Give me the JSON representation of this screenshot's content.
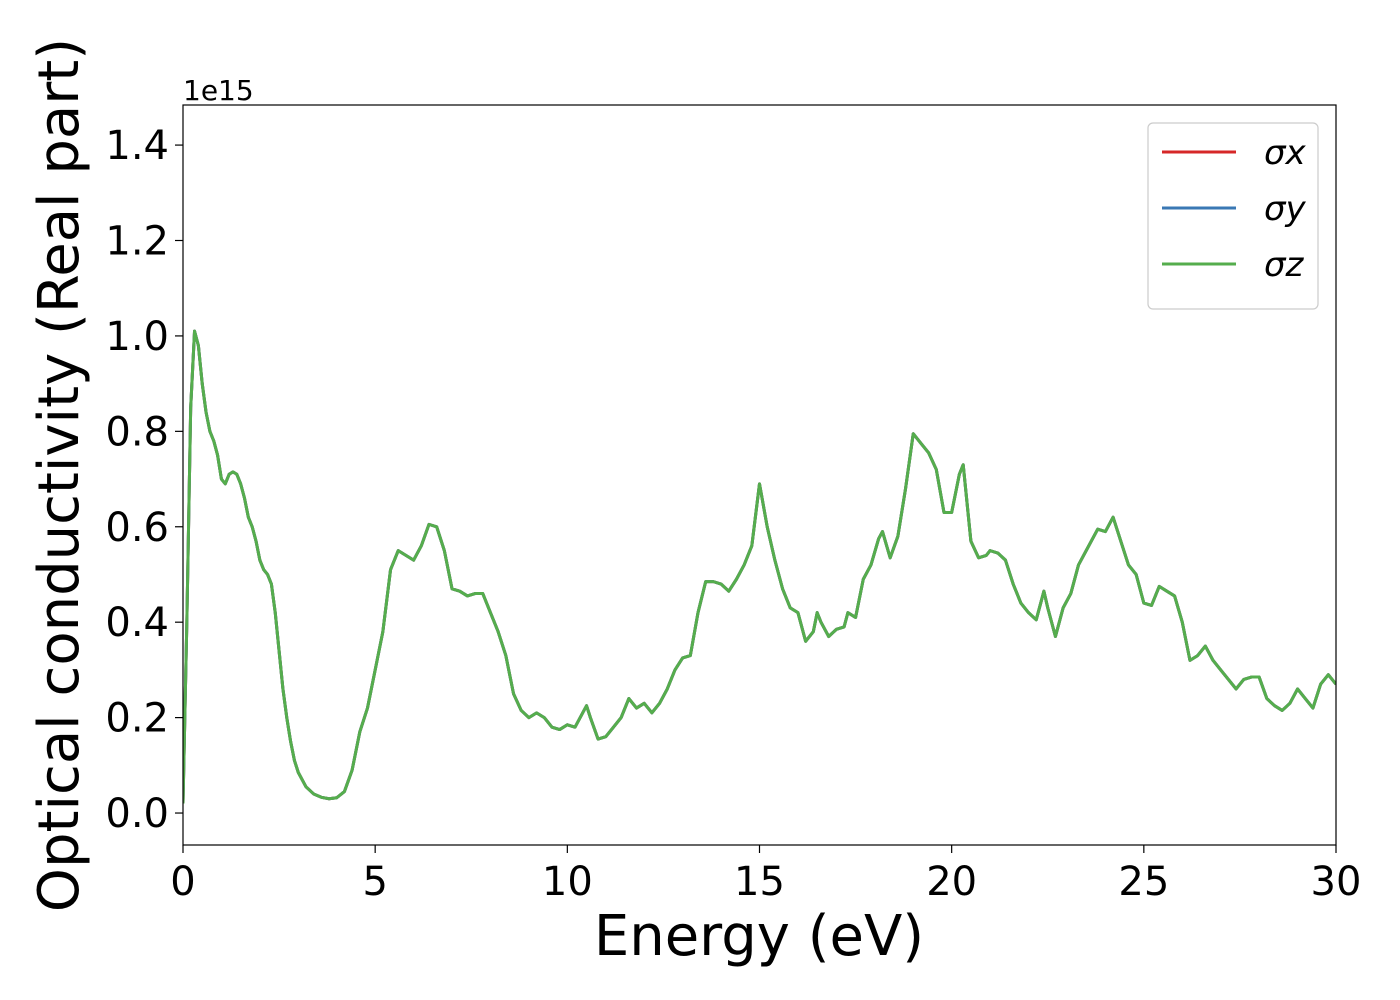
{
  "chart_data": {
    "type": "line",
    "xlabel": "Energy (eV)",
    "ylabel": "Optical conductivity (Real part)",
    "y_offset_label": "1e15",
    "xlim": [
      0,
      30
    ],
    "xticks": [
      0,
      5,
      10,
      15,
      20,
      25,
      30
    ],
    "ylim": [
      -0.067,
      1.484
    ],
    "yticks": [
      {
        "value": 0,
        "label": "0.0"
      },
      0.2,
      0.4,
      0.6,
      0.8,
      {
        "value": 1,
        "label": "1.0"
      },
      1.2,
      1.4
    ],
    "legend": "upper right",
    "grid": false,
    "x": [
      0,
      0.1,
      0.2,
      0.3,
      0.4,
      0.5,
      0.6,
      0.7,
      0.8,
      0.9,
      1.0,
      1.1,
      1.2,
      1.3,
      1.4,
      1.5,
      1.6,
      1.7,
      1.8,
      1.9,
      2.0,
      2.1,
      2.2,
      2.3,
      2.4,
      2.5,
      2.6,
      2.7,
      2.8,
      2.9,
      3.0,
      3.2,
      3.4,
      3.6,
      3.8,
      4.0,
      4.2,
      4.4,
      4.6,
      4.8,
      5.0,
      5.2,
      5.4,
      5.6,
      5.8,
      6.0,
      6.2,
      6.4,
      6.6,
      6.8,
      7.0,
      7.2,
      7.4,
      7.6,
      7.8,
      8.0,
      8.2,
      8.4,
      8.6,
      8.8,
      9.0,
      9.2,
      9.4,
      9.6,
      9.8,
      10.0,
      10.2,
      10.4,
      10.5,
      10.6,
      10.8,
      11.0,
      11.2,
      11.4,
      11.6,
      11.8,
      12.0,
      12.2,
      12.4,
      12.6,
      12.8,
      13.0,
      13.2,
      13.4,
      13.6,
      13.8,
      14.0,
      14.2,
      14.4,
      14.6,
      14.8,
      15.0,
      15.2,
      15.4,
      15.6,
      15.8,
      16.0,
      16.2,
      16.4,
      16.5,
      16.6,
      16.8,
      17.0,
      17.2,
      17.3,
      17.5,
      17.7,
      17.9,
      18.1,
      18.2,
      18.4,
      18.6,
      18.8,
      19.0,
      19.2,
      19.4,
      19.6,
      19.8,
      20.0,
      20.2,
      20.3,
      20.5,
      20.7,
      20.9,
      21.0,
      21.2,
      21.4,
      21.6,
      21.8,
      22.0,
      22.2,
      22.4,
      22.5,
      22.7,
      22.9,
      23.1,
      23.3,
      23.5,
      23.8,
      24.0,
      24.2,
      24.4,
      24.6,
      24.8,
      25.0,
      25.2,
      25.4,
      25.6,
      25.8,
      26.0,
      26.2,
      26.4,
      26.6,
      26.8,
      27.0,
      27.2,
      27.4,
      27.6,
      27.8,
      28.0,
      28.2,
      28.4,
      28.6,
      28.8,
      29.0,
      29.2,
      29.4,
      29.6,
      29.8,
      30.0
    ],
    "series": [
      {
        "name": "σx",
        "color": "#d62728",
        "values": [
          0.02,
          0.4,
          0.85,
          1.01,
          0.98,
          0.9,
          0.84,
          0.8,
          0.78,
          0.75,
          0.7,
          0.69,
          0.71,
          0.715,
          0.71,
          0.69,
          0.66,
          0.62,
          0.6,
          0.57,
          0.53,
          0.51,
          0.5,
          0.48,
          0.42,
          0.34,
          0.26,
          0.2,
          0.15,
          0.11,
          0.085,
          0.055,
          0.04,
          0.033,
          0.03,
          0.032,
          0.045,
          0.09,
          0.17,
          0.22,
          0.3,
          0.38,
          0.51,
          0.55,
          0.54,
          0.53,
          0.56,
          0.605,
          0.6,
          0.55,
          0.47,
          0.465,
          0.455,
          0.46,
          0.46,
          0.42,
          0.38,
          0.33,
          0.25,
          0.215,
          0.2,
          0.21,
          0.2,
          0.18,
          0.175,
          0.185,
          0.18,
          0.21,
          0.225,
          0.2,
          0.155,
          0.16,
          0.18,
          0.2,
          0.24,
          0.22,
          0.23,
          0.21,
          0.23,
          0.26,
          0.3,
          0.325,
          0.33,
          0.42,
          0.485,
          0.485,
          0.48,
          0.465,
          0.49,
          0.52,
          0.56,
          0.69,
          0.6,
          0.53,
          0.47,
          0.43,
          0.42,
          0.36,
          0.38,
          0.42,
          0.4,
          0.37,
          0.385,
          0.39,
          0.42,
          0.41,
          0.49,
          0.52,
          0.575,
          0.59,
          0.535,
          0.58,
          0.68,
          0.795,
          0.775,
          0.755,
          0.72,
          0.63,
          0.63,
          0.71,
          0.73,
          0.57,
          0.535,
          0.54,
          0.55,
          0.545,
          0.53,
          0.48,
          0.44,
          0.42,
          0.405,
          0.465,
          0.43,
          0.37,
          0.43,
          0.46,
          0.52,
          0.55,
          0.595,
          0.59,
          0.62,
          0.57,
          0.52,
          0.5,
          0.44,
          0.435,
          0.475,
          0.465,
          0.455,
          0.4,
          0.32,
          0.33,
          0.35,
          0.32,
          0.3,
          0.28,
          0.26,
          0.28,
          0.285,
          0.285,
          0.24,
          0.225,
          0.215,
          0.23,
          0.26,
          0.24,
          0.22,
          0.27,
          0.29,
          0.27
        ]
      },
      {
        "name": "σy",
        "color": "#3a78b4",
        "values": [
          0.02,
          0.4,
          0.85,
          1.01,
          0.98,
          0.9,
          0.84,
          0.8,
          0.78,
          0.75,
          0.7,
          0.69,
          0.71,
          0.715,
          0.71,
          0.69,
          0.66,
          0.62,
          0.6,
          0.57,
          0.53,
          0.51,
          0.5,
          0.48,
          0.42,
          0.34,
          0.26,
          0.2,
          0.15,
          0.11,
          0.085,
          0.055,
          0.04,
          0.033,
          0.03,
          0.032,
          0.045,
          0.09,
          0.17,
          0.22,
          0.3,
          0.38,
          0.51,
          0.55,
          0.54,
          0.53,
          0.56,
          0.605,
          0.6,
          0.55,
          0.47,
          0.465,
          0.455,
          0.46,
          0.46,
          0.42,
          0.38,
          0.33,
          0.25,
          0.215,
          0.2,
          0.21,
          0.2,
          0.18,
          0.175,
          0.185,
          0.18,
          0.21,
          0.225,
          0.2,
          0.155,
          0.16,
          0.18,
          0.2,
          0.24,
          0.22,
          0.23,
          0.21,
          0.23,
          0.26,
          0.3,
          0.325,
          0.33,
          0.42,
          0.485,
          0.485,
          0.48,
          0.465,
          0.49,
          0.52,
          0.56,
          0.69,
          0.6,
          0.53,
          0.47,
          0.43,
          0.42,
          0.36,
          0.38,
          0.42,
          0.4,
          0.37,
          0.385,
          0.39,
          0.42,
          0.41,
          0.49,
          0.52,
          0.575,
          0.59,
          0.535,
          0.58,
          0.68,
          0.795,
          0.775,
          0.755,
          0.72,
          0.63,
          0.63,
          0.71,
          0.73,
          0.57,
          0.535,
          0.54,
          0.55,
          0.545,
          0.53,
          0.48,
          0.44,
          0.42,
          0.405,
          0.465,
          0.43,
          0.37,
          0.43,
          0.46,
          0.52,
          0.55,
          0.595,
          0.59,
          0.62,
          0.57,
          0.52,
          0.5,
          0.44,
          0.435,
          0.475,
          0.465,
          0.455,
          0.4,
          0.32,
          0.33,
          0.35,
          0.32,
          0.3,
          0.28,
          0.26,
          0.28,
          0.285,
          0.285,
          0.24,
          0.225,
          0.215,
          0.23,
          0.26,
          0.24,
          0.22,
          0.27,
          0.29,
          0.27
        ]
      },
      {
        "name": "σz",
        "color": "#55ad4d",
        "values": [
          0.02,
          0.4,
          0.85,
          1.01,
          0.98,
          0.9,
          0.84,
          0.8,
          0.78,
          0.75,
          0.7,
          0.69,
          0.71,
          0.715,
          0.71,
          0.69,
          0.66,
          0.62,
          0.6,
          0.57,
          0.53,
          0.51,
          0.5,
          0.48,
          0.42,
          0.34,
          0.26,
          0.2,
          0.15,
          0.11,
          0.085,
          0.055,
          0.04,
          0.033,
          0.03,
          0.032,
          0.045,
          0.09,
          0.17,
          0.22,
          0.3,
          0.38,
          0.51,
          0.55,
          0.54,
          0.53,
          0.56,
          0.605,
          0.6,
          0.55,
          0.47,
          0.465,
          0.455,
          0.46,
          0.46,
          0.42,
          0.38,
          0.33,
          0.25,
          0.215,
          0.2,
          0.21,
          0.2,
          0.18,
          0.175,
          0.185,
          0.18,
          0.21,
          0.225,
          0.2,
          0.155,
          0.16,
          0.18,
          0.2,
          0.24,
          0.22,
          0.23,
          0.21,
          0.23,
          0.26,
          0.3,
          0.325,
          0.33,
          0.42,
          0.485,
          0.485,
          0.48,
          0.465,
          0.49,
          0.52,
          0.56,
          0.69,
          0.6,
          0.53,
          0.47,
          0.43,
          0.42,
          0.36,
          0.38,
          0.42,
          0.4,
          0.37,
          0.385,
          0.39,
          0.42,
          0.41,
          0.49,
          0.52,
          0.575,
          0.59,
          0.535,
          0.58,
          0.68,
          0.795,
          0.775,
          0.755,
          0.72,
          0.63,
          0.63,
          0.71,
          0.73,
          0.57,
          0.535,
          0.54,
          0.55,
          0.545,
          0.53,
          0.48,
          0.44,
          0.42,
          0.405,
          0.465,
          0.43,
          0.37,
          0.43,
          0.46,
          0.52,
          0.55,
          0.595,
          0.59,
          0.62,
          0.57,
          0.52,
          0.5,
          0.44,
          0.435,
          0.475,
          0.465,
          0.455,
          0.4,
          0.32,
          0.33,
          0.35,
          0.32,
          0.3,
          0.28,
          0.26,
          0.28,
          0.285,
          0.285,
          0.24,
          0.225,
          0.215,
          0.23,
          0.26,
          0.24,
          0.22,
          0.27,
          0.29,
          0.27
        ]
      }
    ]
  }
}
